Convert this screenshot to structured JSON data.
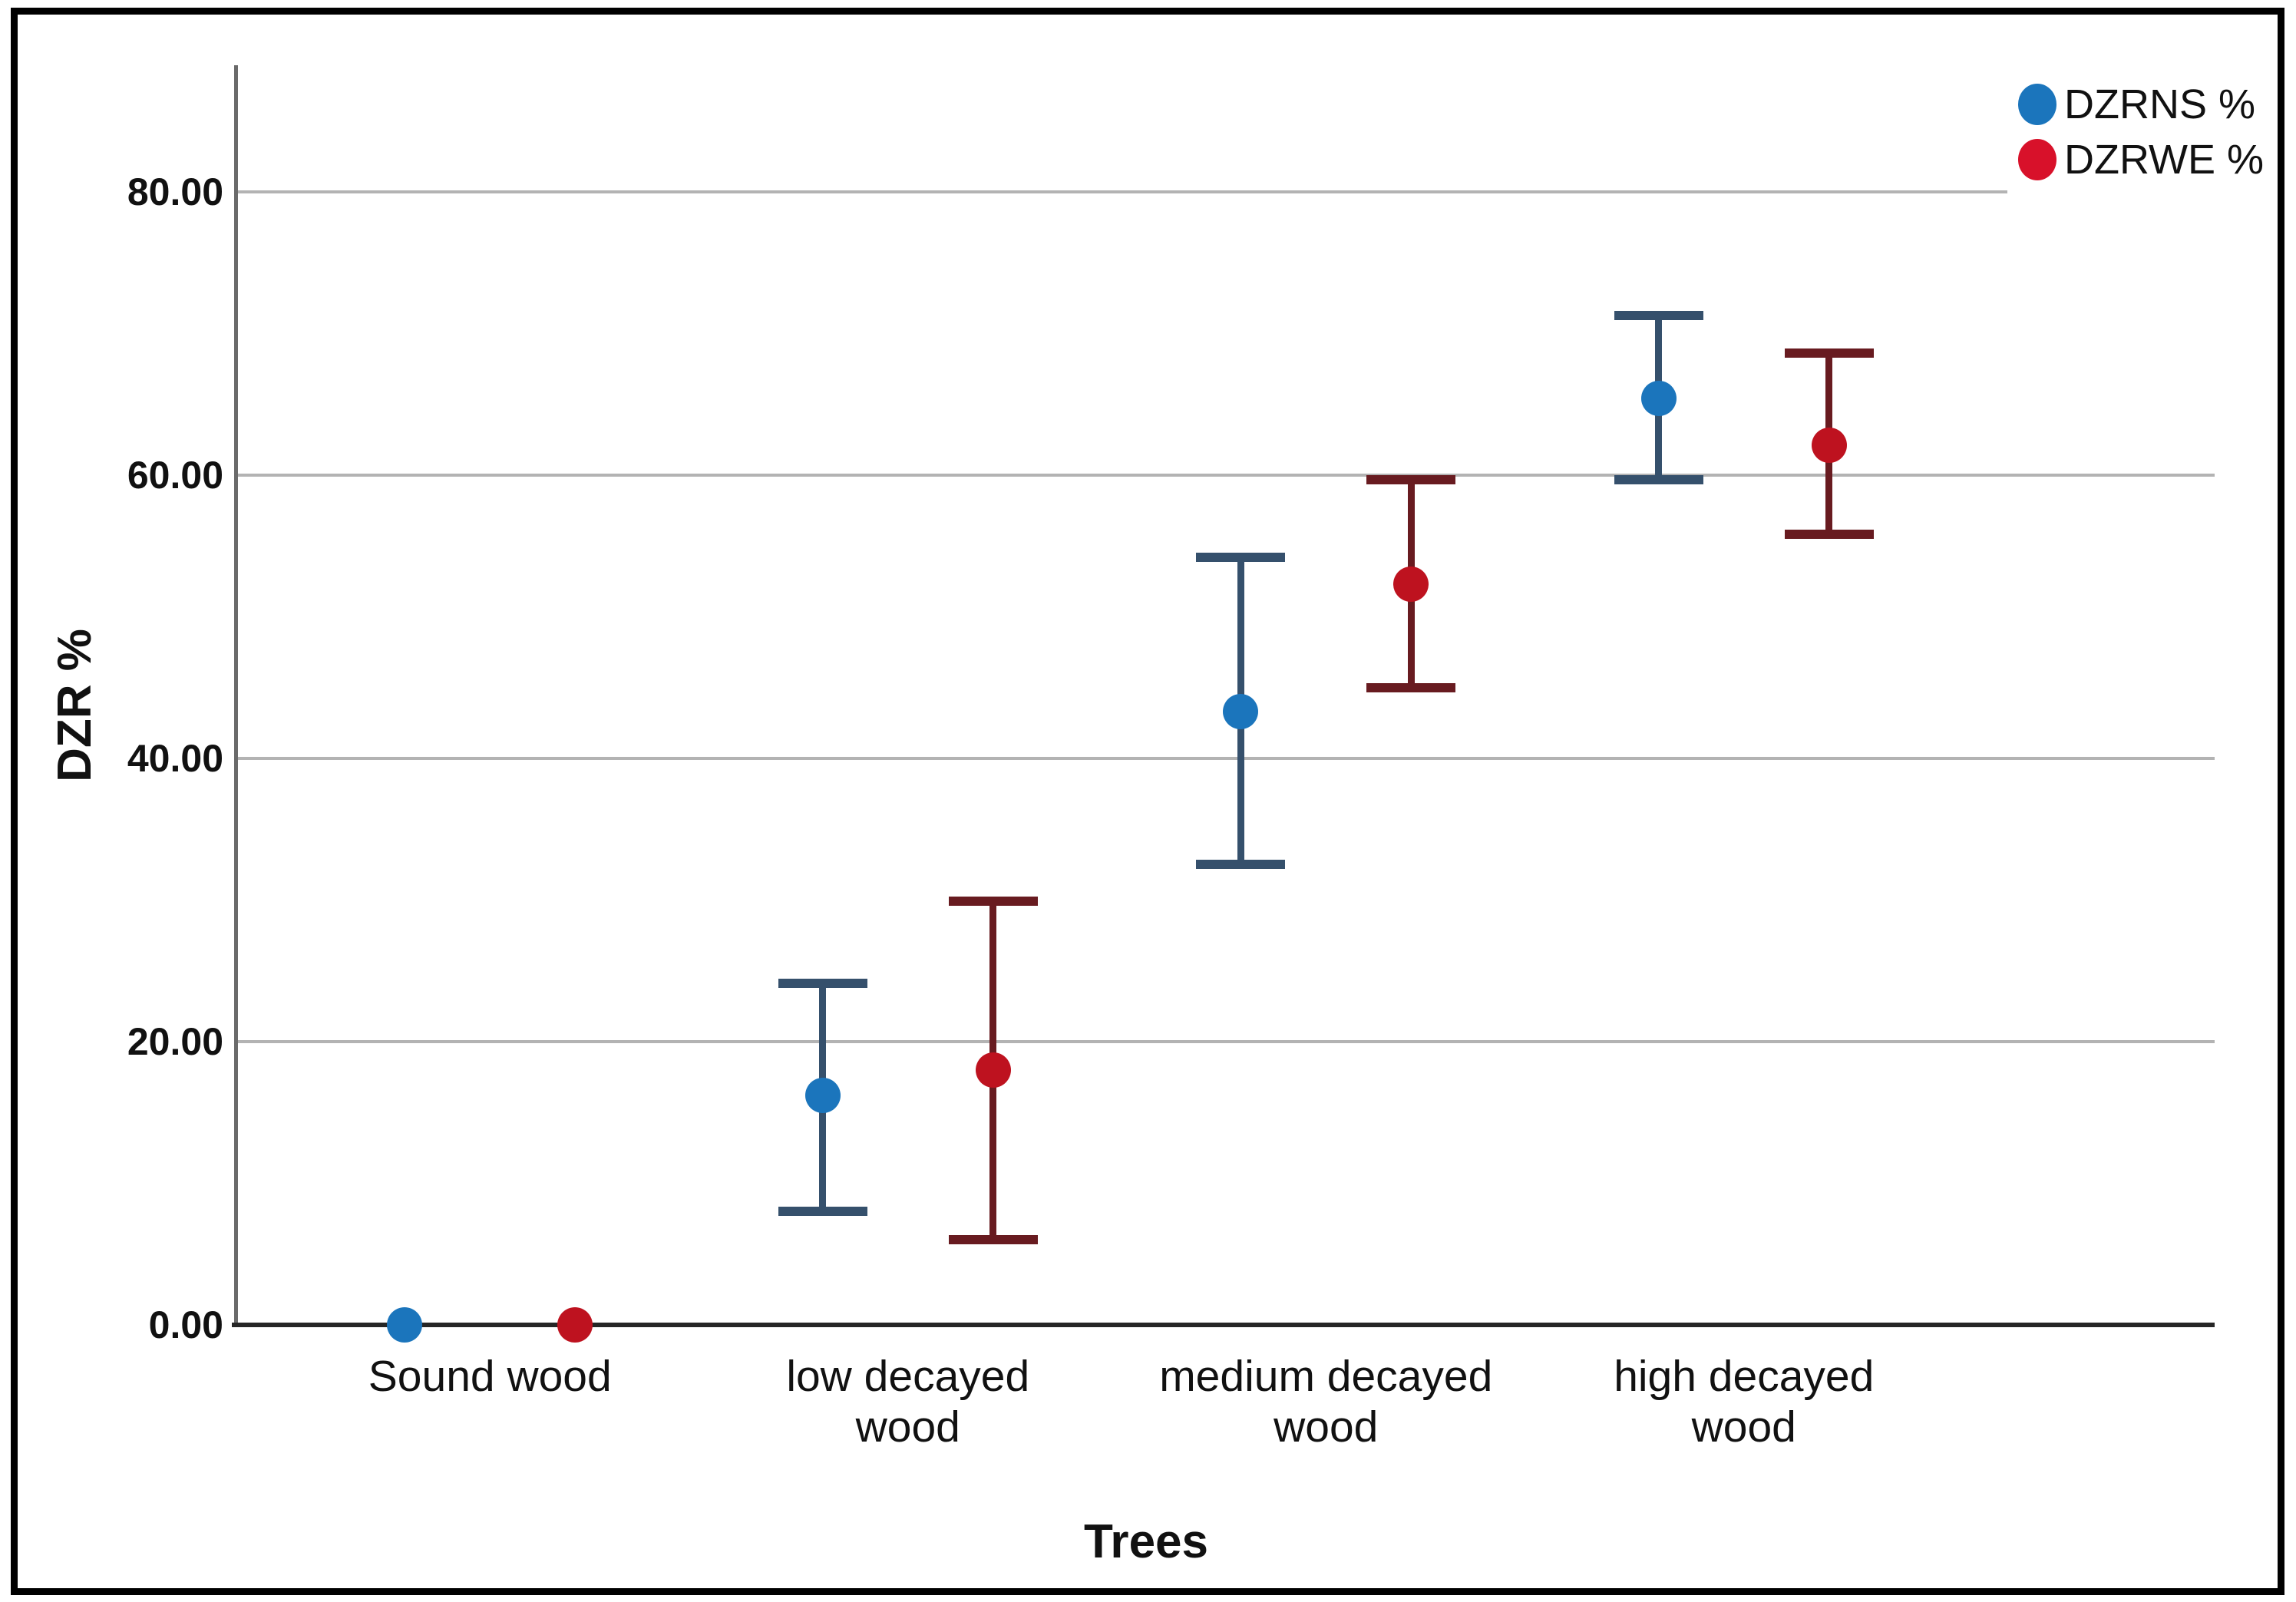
{
  "figure": {
    "y_axis_title": "DZR %",
    "x_axis_title": "Trees"
  },
  "legend": {
    "position": "top-right",
    "entries": [
      {
        "label": "DZRNS %",
        "color": "#1B75BC"
      },
      {
        "label": "DZRWE %",
        "color": "#D8112A"
      }
    ]
  },
  "chart_data": {
    "type": "scatter",
    "subtype": "error-bar means with 95% confidence intervals",
    "title": "",
    "xlabel": "Trees",
    "ylabel": "DZR %",
    "categories": [
      "Sound wood",
      "low decayed wood",
      "medium decayed wood",
      "high decayed wood"
    ],
    "y_ticks": [
      0,
      20,
      40,
      60,
      80
    ],
    "y_tick_labels": [
      "0.00",
      "20.00",
      "40.00",
      "60.00",
      "80.00"
    ],
    "ylim": [
      0,
      89
    ],
    "grid": "horizontal",
    "legend_position": "top-right",
    "series": [
      {
        "name": "DZRNS %",
        "marker_color": "#1B75BC",
        "bar_color": "#35506C",
        "means": [
          0.0,
          16.2,
          43.3,
          65.4
        ],
        "ci_low": [
          0.0,
          8.0,
          32.5,
          59.7
        ],
        "ci_high": [
          0.0,
          24.1,
          54.2,
          71.3
        ]
      },
      {
        "name": "DZRWE %",
        "marker_color": "#BE121F",
        "bar_color": "#681B20",
        "means": [
          0.0,
          18.0,
          52.3,
          62.1
        ],
        "ci_low": [
          0.0,
          6.0,
          45.0,
          55.8
        ],
        "ci_high": [
          0.0,
          29.9,
          59.7,
          68.6
        ]
      }
    ]
  }
}
